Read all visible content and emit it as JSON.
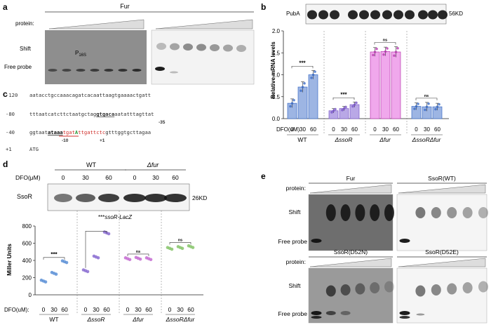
{
  "panels": {
    "a": {
      "letter": "a",
      "title": "Fur",
      "protein_label": "protein:",
      "shift_label": "Shift",
      "free_probe_label": "Free probe",
      "probe_name": "P",
      "probe_sub": "16S"
    },
    "b": {
      "letter": "b",
      "western_label": "PubA",
      "western_size": "56KD",
      "ylabel": "Relative mRNA levels",
      "dfo_label": "DFO(uM)",
      "dose_labels": [
        "0",
        "30",
        "60"
      ],
      "groups": [
        "WT",
        "ΔssoR",
        "Δfur",
        "ΔssoRΔfur"
      ],
      "sig": [
        "***",
        "***",
        "ns",
        "ns"
      ]
    },
    "c": {
      "letter": "c",
      "rows": [
        {
          "pos": "-120",
          "seq": "aatacctgccaaacagatcacaattaagtgaaaactgatt"
        },
        {
          "pos": "-80",
          "seq_a": "tttaatcatcttctaatgctag",
          "seq_b": "gtgaca",
          "seq_c": "aatatttagttat",
          "box": "-35"
        },
        {
          "pos": "-40",
          "seq_a": "ggtaat",
          "seq_b": "ataaa",
          "seq_c": "tgat",
          "seq_d": "A",
          "seq_e": "ttgattctc",
          "seq_f": "gtttggtgcttagaa",
          "box10": "-10",
          "tss": "+1"
        },
        {
          "pos": "+1",
          "seq": "ATG"
        }
      ]
    },
    "d": {
      "letter": "d",
      "wt_label": "WT",
      "fur_label": "Δfur",
      "dfo_label": "DFO(μM)",
      "dose_labels": [
        "0",
        "30",
        "60"
      ],
      "western_label": "SsoR",
      "western_size": "26KD",
      "reporter": "ssoR-LacZ",
      "reporter_sig": "***",
      "ylabel": "Miller Units",
      "xdfo_label": "DFO(uM):",
      "groups": [
        "WT",
        "ΔssoR",
        "Δfur",
        "ΔssoRΔfur"
      ],
      "sig": [
        "***",
        "",
        "ns",
        "ns"
      ]
    },
    "e": {
      "letter": "e",
      "gels": [
        "Fur",
        "SsoR(WT)",
        "SsoR(D52N)",
        "SsoR(D52E)"
      ],
      "protein_label": "protein:",
      "shift_label": "Shift",
      "free_probe_label": "Free probe"
    }
  },
  "chart_data": [
    {
      "type": "bar",
      "panel": "b",
      "ylabel": "Relative mRNA levels",
      "ylim": [
        0,
        2.0
      ],
      "yticks": [
        0.0,
        0.5,
        1.0,
        1.5,
        2.0
      ],
      "groups": [
        "WT",
        "ΔssoR",
        "Δfur",
        "ΔssoRΔfur"
      ],
      "doses": [
        "0",
        "30",
        "60"
      ],
      "values": [
        [
          0.35,
          0.72,
          1.0
        ],
        [
          0.18,
          0.23,
          0.32
        ],
        [
          1.52,
          1.53,
          1.52
        ],
        [
          0.28,
          0.27,
          0.27
        ]
      ],
      "errors": [
        [
          0.1,
          0.12,
          0.1
        ],
        [
          0.05,
          0.05,
          0.06
        ],
        [
          0.1,
          0.1,
          0.12
        ],
        [
          0.08,
          0.1,
          0.08
        ]
      ],
      "colors": [
        "#9db5e3",
        "#b9a8e6",
        "#f0a8ec",
        "#9db5e3"
      ],
      "edge": [
        "#3b6cc7",
        "#7b57c9",
        "#b93ab0",
        "#3b6cc7"
      ]
    },
    {
      "type": "scatter",
      "panel": "d",
      "ylabel": "Miller Units",
      "ylim": [
        0,
        800
      ],
      "yticks": [
        0,
        200,
        400,
        600,
        800
      ],
      "groups": [
        "WT",
        "ΔssoR",
        "Δfur",
        "ΔssoRΔfur"
      ],
      "doses": [
        "0",
        "30",
        "60"
      ],
      "values": [
        [
          160,
          250,
          385
        ],
        [
          280,
          440,
          720
        ],
        [
          420,
          425,
          420
        ],
        [
          540,
          550,
          560
        ]
      ],
      "colors": [
        "#5a8fd6",
        "#8a6cd1",
        "#c46cd1",
        "#86c46a"
      ]
    }
  ]
}
